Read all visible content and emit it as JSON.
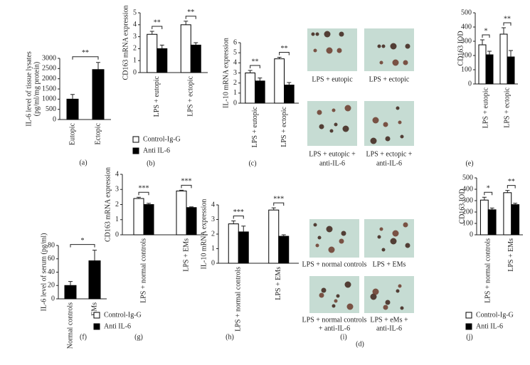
{
  "chart_data": [
    {
      "type": "bar",
      "panel_label": "(a)",
      "ylabel": [
        "IL-6 level of tissue lysates",
        "(pg/ml/mg protein)"
      ],
      "categories": [
        "Eutopic",
        "Ectopic"
      ],
      "values": [
        1000,
        2450
      ],
      "errors": [
        230,
        350
      ],
      "color": "#000000",
      "ylim": [
        0,
        3000
      ],
      "yticks": [
        0,
        500,
        1000,
        1500,
        2000,
        2500,
        3000
      ],
      "significance": "**"
    },
    {
      "type": "grouped_bar",
      "panel_label": "(b)",
      "ylabel": [
        "CD163 mRNA expression"
      ],
      "categories": [
        "LPS + eutopic",
        "LPS + ectopic"
      ],
      "series": [
        {
          "name": "Control-Ig-G",
          "color": "#ffffff",
          "values": [
            3.2,
            4.0
          ],
          "errors": [
            0.25,
            0.3
          ]
        },
        {
          "name": "Anti IL-6",
          "color": "#000000",
          "values": [
            2.0,
            2.3
          ],
          "errors": [
            0.3,
            0.2
          ]
        }
      ],
      "ylim": [
        0,
        5
      ],
      "yticks": [
        0,
        1,
        2,
        3,
        4,
        5
      ],
      "significance": [
        "**",
        "**"
      ],
      "legend": true
    },
    {
      "type": "grouped_bar",
      "panel_label": "(c)",
      "ylabel": [
        "IL-10 mRNA expression"
      ],
      "categories": [
        "LPS + eutopic",
        "LPS + ectopic"
      ],
      "series": [
        {
          "color": "#ffffff",
          "values": [
            3.0,
            4.4
          ],
          "errors": [
            0.25,
            0.15
          ]
        },
        {
          "color": "#000000",
          "values": [
            2.2,
            1.8
          ],
          "errors": [
            0.3,
            0.25
          ]
        }
      ],
      "ylim": [
        0,
        6
      ],
      "yticks": [
        0,
        1,
        2,
        3,
        4,
        5,
        6
      ],
      "significance": [
        "**",
        "**"
      ],
      "legend": false
    },
    {
      "type": "grouped_bar",
      "panel_label": "(e)",
      "ylabel": [
        "CD163 IOD"
      ],
      "categories": [
        "LPS + eutopic",
        "LPS + ectopic"
      ],
      "series": [
        {
          "color": "#ffffff",
          "values": [
            275,
            350
          ],
          "errors": [
            35,
            45
          ]
        },
        {
          "color": "#000000",
          "values": [
            205,
            190
          ],
          "errors": [
            25,
            45
          ]
        }
      ],
      "ylim": [
        0,
        500
      ],
      "yticks": [
        0,
        100,
        200,
        300,
        400,
        500
      ],
      "significance": [
        "*",
        "**"
      ],
      "legend": false
    },
    {
      "type": "bar",
      "panel_label": "(f)",
      "ylabel": [
        "IL-6 level of serum (pg/ml)"
      ],
      "categories": [
        "Normal controls",
        "EMs"
      ],
      "values": [
        20,
        57
      ],
      "errors": [
        6,
        16
      ],
      "color": "#000000",
      "ylim": [
        0,
        80
      ],
      "yticks": [
        0,
        20,
        40,
        60,
        80
      ],
      "significance": "*"
    },
    {
      "type": "grouped_bar",
      "panel_label": "(g)",
      "ylabel": [
        "CD163 mRNA expression"
      ],
      "categories": [
        "LPS + normal controls",
        "LPS + EMs"
      ],
      "series": [
        {
          "name": "Control-Ig-G",
          "color": "#ffffff",
          "values": [
            2.4,
            2.9
          ],
          "errors": [
            0.08,
            0.05
          ]
        },
        {
          "name": "Anti IL-6",
          "color": "#000000",
          "values": [
            2.0,
            1.8
          ],
          "errors": [
            0.08,
            0.05
          ]
        }
      ],
      "ylim": [
        0,
        4
      ],
      "yticks": [
        0,
        1,
        2,
        3,
        4
      ],
      "significance": [
        "***",
        "***"
      ],
      "legend": true
    },
    {
      "type": "grouped_bar",
      "panel_label": "(h)",
      "ylabel": [
        "IL-10 mRNA expression"
      ],
      "categories": [
        "LPS + normal controls",
        "LPS + EMs"
      ],
      "series": [
        {
          "color": "#ffffff",
          "values": [
            2.7,
            3.65
          ],
          "errors": [
            0.2,
            0.15
          ]
        },
        {
          "color": "#000000",
          "values": [
            2.15,
            1.85
          ],
          "errors": [
            0.4,
            0.1
          ]
        }
      ],
      "ylim": [
        0,
        4
      ],
      "yticks": [
        0,
        1,
        2,
        3,
        4
      ],
      "significance": [
        "***",
        "***"
      ],
      "legend": false
    },
    {
      "type": "grouped_bar",
      "panel_label": "(j)",
      "ylabel": [
        "CD163 IOD"
      ],
      "categories": [
        "LPS + normal controls",
        "LPS + EMs"
      ],
      "series": [
        {
          "name": "Control-Ig-G",
          "color": "#ffffff",
          "values": [
            305,
            370
          ],
          "errors": [
            25,
            20
          ]
        },
        {
          "name": "Anti IL-6",
          "color": "#000000",
          "values": [
            220,
            265
          ],
          "errors": [
            15,
            12
          ]
        }
      ],
      "ylim": [
        0,
        500
      ],
      "yticks": [
        0,
        100,
        200,
        300,
        400,
        500
      ],
      "significance": [
        "*",
        "**"
      ],
      "legend": true
    }
  ],
  "image_panels": [
    {
      "panel_label": "(d)",
      "captions": [
        [
          "LPS + eutopic"
        ],
        [
          "LPS + ectopic"
        ],
        [
          "LPS + eutopic +",
          "anti-IL-6"
        ],
        [
          "LPS + ectopic +",
          "anti-IL-6"
        ]
      ]
    },
    {
      "panel_label": "(i)",
      "captions": [
        [
          "LPS + normal controls"
        ],
        [
          "LPS + EMs"
        ],
        [
          "LPS + normal controls",
          "+ anti-IL-6"
        ],
        [
          "LPS + eMs +",
          "anti-IL-6"
        ]
      ]
    }
  ]
}
